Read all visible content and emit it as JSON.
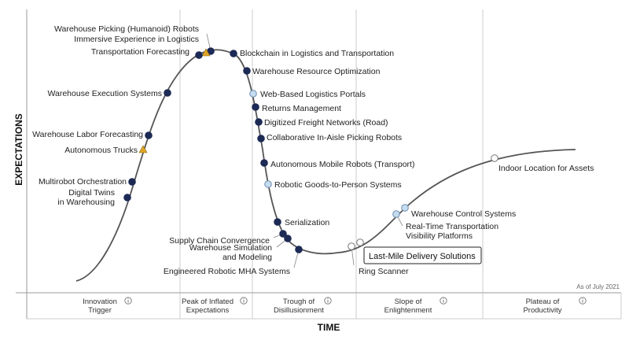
{
  "chart_data": {
    "type": "scatter",
    "xlabel": "TIME",
    "ylabel": "EXPECTATIONS",
    "as_of": "As of July 2021",
    "phases": [
      {
        "lines": [
          "Innovation",
          "Trigger"
        ]
      },
      {
        "lines": [
          "Peak of Inflated",
          "Expectations"
        ]
      },
      {
        "lines": [
          "Trough of",
          "Disillusionment"
        ]
      },
      {
        "lines": [
          "Slope of",
          "Enlightenment"
        ]
      },
      {
        "lines": [
          "Plateau of",
          "Productivity"
        ]
      }
    ],
    "legend_marker_types": [
      "dark-circle",
      "light-circle",
      "white-circle",
      "triangle"
    ],
    "colors": {
      "curve": "#555555",
      "dark": "#1c2a55",
      "light": "#c5dcef",
      "white": "#ffffff",
      "triangle": "#e0a526",
      "grid": "#cccccc"
    },
    "highlighted": "Last-Mile Delivery Solutions",
    "points": [
      {
        "name": "Warehouse Picking (Humanoid) Robots",
        "marker": "dark"
      },
      {
        "name": "Immersive Experience in Logistics",
        "marker": "triangle"
      },
      {
        "name": "Transportation Forecasting",
        "marker": "dark"
      },
      {
        "name": "Blockchain in Logistics and Transportation",
        "marker": "dark"
      },
      {
        "name": "Warehouse Resource Optimization",
        "marker": "dark"
      },
      {
        "name": "Warehouse Execution Systems",
        "marker": "dark"
      },
      {
        "name": "Web-Based Logistics Portals",
        "marker": "light"
      },
      {
        "name": "Returns Management",
        "marker": "dark"
      },
      {
        "name": "Digitized Freight Networks (Road)",
        "marker": "dark"
      },
      {
        "name": "Collaborative In-Aisle Picking Robots",
        "marker": "dark"
      },
      {
        "name": "Warehouse Labor Forecasting",
        "marker": "dark"
      },
      {
        "name": "Autonomous Trucks",
        "marker": "triangle"
      },
      {
        "name": "Autonomous Mobile Robots (Transport)",
        "marker": "dark"
      },
      {
        "name": "Multirobot Orchestration",
        "marker": "dark"
      },
      {
        "name": "Robotic Goods-to-Person Systems",
        "marker": "light"
      },
      {
        "name": "Digital Twins in Warehousing",
        "marker": "dark"
      },
      {
        "name": "Indoor Location for Assets",
        "marker": "white"
      },
      {
        "name": "Warehouse Control Systems",
        "marker": "light"
      },
      {
        "name": "Serialization",
        "marker": "dark"
      },
      {
        "name": "Real-Time Transportation Visibility Platforms",
        "marker": "light"
      },
      {
        "name": "Supply Chain Convergence",
        "marker": "dark"
      },
      {
        "name": "Warehouse Simulation and Modeling",
        "marker": "dark"
      },
      {
        "name": "Last-Mile Delivery Solutions",
        "marker": "white"
      },
      {
        "name": "Engineered Robotic MHA Systems",
        "marker": "dark"
      },
      {
        "name": "Ring Scanner",
        "marker": "white"
      }
    ]
  }
}
